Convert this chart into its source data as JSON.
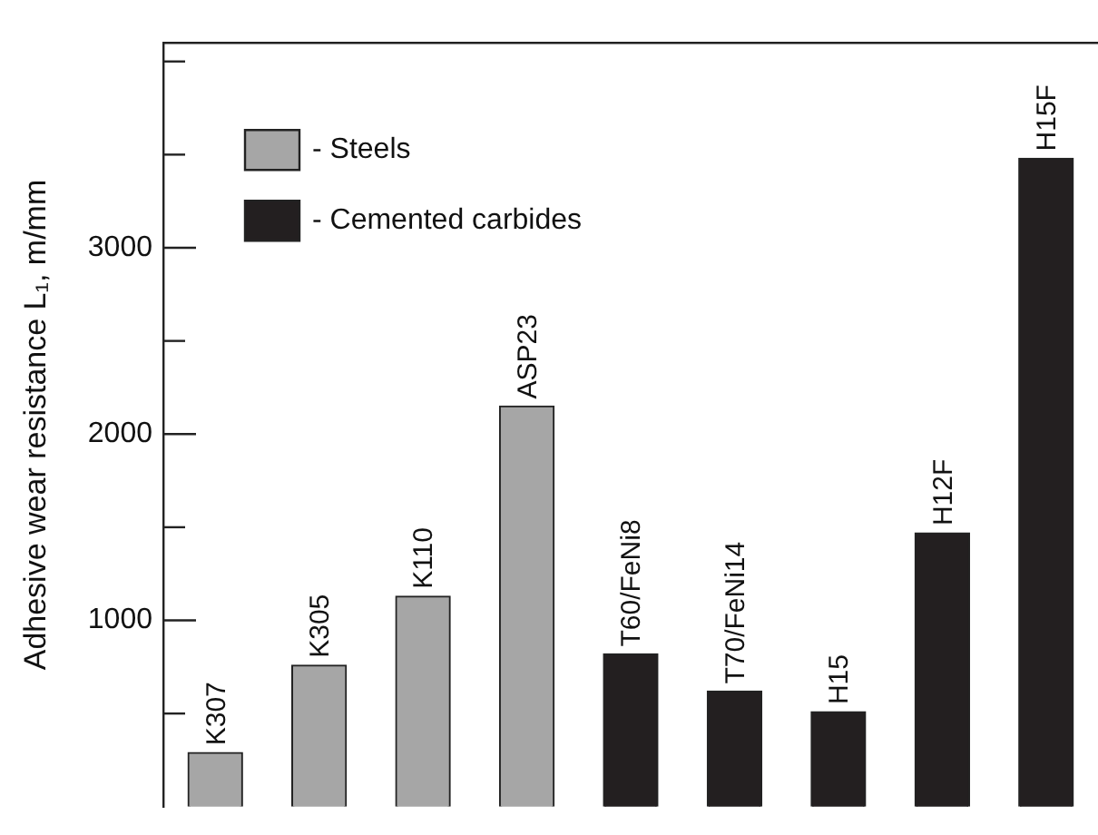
{
  "chart_data": {
    "type": "bar",
    "ylabel": "Adhesive wear resistance L₁, m/mm",
    "categories": [
      "K307",
      "K305",
      "K110",
      "ASP23",
      "T60/FeNi8",
      "T70/FeNi14",
      "H15",
      "H12F",
      "H15F"
    ],
    "series": [
      {
        "name": "- Steels",
        "color": "#a6a6a6",
        "values": [
          290,
          760,
          1130,
          2150,
          null,
          null,
          null,
          null,
          null
        ]
      },
      {
        "name": "- Cemented carbides",
        "color": "#231f20",
        "values": [
          null,
          null,
          null,
          null,
          820,
          620,
          510,
          1470,
          3480
        ]
      }
    ],
    "ylim": [
      0,
      4100
    ],
    "yticks": [
      {
        "value": 500,
        "label": null
      },
      1000,
      {
        "value": 1500,
        "label": null
      },
      2000,
      {
        "value": 2500,
        "label": null
      },
      3000,
      {
        "value": 3500,
        "label": null
      },
      {
        "value": 4000,
        "label": null
      }
    ],
    "grid": false,
    "legend": "top left"
  }
}
